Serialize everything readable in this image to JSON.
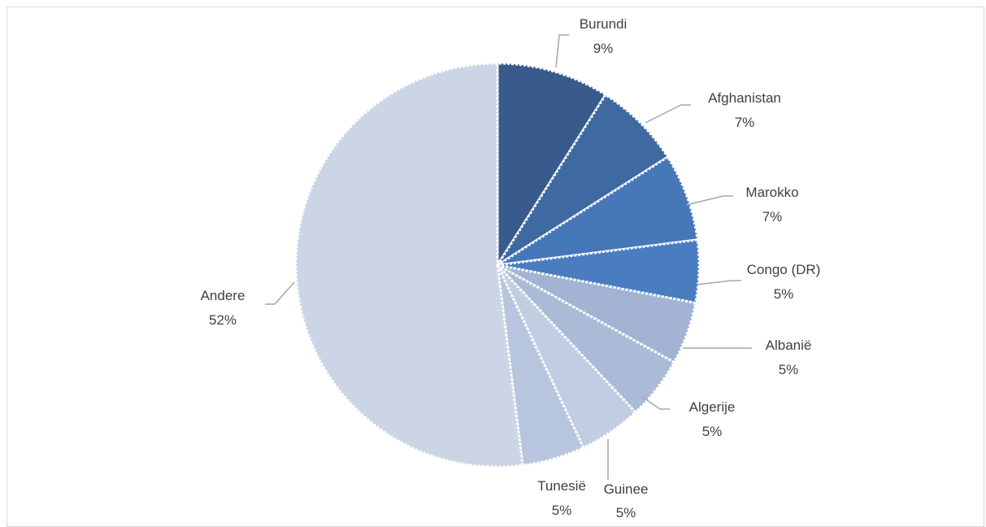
{
  "chart_data": {
    "type": "pie",
    "title": "",
    "slices": [
      {
        "label": "Burundi",
        "value": 9,
        "display": "9%",
        "color": "#385a8c"
      },
      {
        "label": "Afghanistan",
        "value": 7,
        "display": "7%",
        "color": "#3e69a1"
      },
      {
        "label": "Marokko",
        "value": 7,
        "display": "7%",
        "color": "#4677b8"
      },
      {
        "label": "Congo (DR)",
        "value": 5,
        "display": "5%",
        "color": "#4a7dc0"
      },
      {
        "label": "Albanië",
        "value": 5,
        "display": "5%",
        "color": "#a2b3d3"
      },
      {
        "label": "Algerije",
        "value": 5,
        "display": "5%",
        "color": "#abbbd7"
      },
      {
        "label": "Guinee",
        "value": 5,
        "display": "5%",
        "color": "#c1cde1"
      },
      {
        "label": "Tunesië",
        "value": 5,
        "display": "5%",
        "color": "#b7c5de"
      },
      {
        "label": "Andere",
        "value": 52,
        "display": "52%",
        "color": "#cbd5e6"
      }
    ],
    "legend": "none",
    "data_labels": "outside-with-leader-lines"
  }
}
